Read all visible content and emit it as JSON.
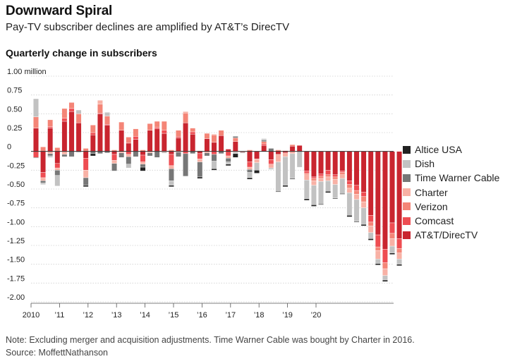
{
  "title": "Downward Spiral",
  "subtitle": "Pay-TV subscriber declines are amplified by AT&T’s DirecTV",
  "chart_heading": "Quarterly change in subscribers",
  "note": "Note: Excluding merger and acquisition adjustments. Time Warner Cable was bought by Charter in 2016.",
  "source": "Source: MoffettNathanson",
  "chart_data": {
    "type": "bar",
    "stacked": true,
    "title": "Quarterly change in subscribers",
    "ylim": [
      -2.0,
      1.0
    ],
    "y_ticks": [
      1.0,
      0.75,
      0.5,
      0.25,
      0,
      -0.25,
      -0.5,
      -0.75,
      -1.0,
      -1.25,
      -1.5,
      -1.75,
      -2.0
    ],
    "y_tick_labels": [
      "1.00 million",
      "0.75",
      "0.50",
      "0.25",
      "0",
      "-0.25",
      "-0.50",
      "-0.75",
      "-1.00",
      "-1.25",
      "-1.50",
      "-1.75",
      "-2.00"
    ],
    "x_tick_labels": [
      "2010",
      "’11",
      "’12",
      "’13",
      "’14",
      "’15",
      "’16",
      "’17",
      "’18",
      "’19",
      "’20"
    ],
    "grid": true,
    "legend_position": "right",
    "series": [
      {
        "name": "AT&T/DirecTV",
        "color": "#c9252f",
        "values": [
          0.31,
          -0.28,
          0.31,
          -0.16,
          0.4,
          0.53,
          0.38,
          -0.09,
          0.22,
          0.5,
          0.35,
          -0.04,
          0.28,
          0.11,
          0.16,
          -0.05,
          0.28,
          0.3,
          0.24,
          -0.04,
          0.18,
          0.38,
          0.23,
          -0.03,
          0.17,
          0.12,
          0.21,
          0.03,
          0.13,
          -0.01,
          -0.14,
          -0.1,
          0.08,
          -0.11,
          -0.04,
          -0.02,
          0.07,
          0.08,
          -0.26,
          -0.34,
          -0.3,
          -0.25,
          -0.31,
          -0.26,
          -0.39,
          -0.45,
          -0.54,
          -0.85,
          -1.11,
          -1.3,
          -0.95,
          -1.16
        ]
      },
      {
        "name": "Comcast",
        "color": "#ee4d52",
        "values": [
          -0.08,
          -0.07,
          0.02,
          -0.06,
          0.04,
          0.04,
          0.0,
          -0.16,
          0.03,
          0.01,
          0.01,
          -0.08,
          0.0,
          -0.04,
          0.04,
          -0.09,
          0.0,
          0.02,
          0.04,
          -0.15,
          0.02,
          -0.03,
          0.03,
          -0.07,
          0.0,
          -0.04,
          0.0,
          -0.06,
          0.0,
          0.0,
          -0.07,
          0.0,
          0.02,
          -0.06,
          0.0,
          0.01,
          0.0,
          0.0,
          -0.03,
          -0.02,
          -0.03,
          -0.06,
          -0.03,
          -0.02,
          -0.05,
          -0.07,
          -0.06,
          -0.09,
          -0.16,
          -0.18,
          -0.14,
          -0.13
        ]
      },
      {
        "name": "Verizon",
        "color": "#f48577",
        "values": [
          0.15,
          0.06,
          0.09,
          0.05,
          0.13,
          0.08,
          0.12,
          0.04,
          0.1,
          0.12,
          0.11,
          0.02,
          0.11,
          0.08,
          0.1,
          0.02,
          0.09,
          0.08,
          0.12,
          0.02,
          0.08,
          0.13,
          0.05,
          0.01,
          0.07,
          0.1,
          0.07,
          0.0,
          0.05,
          0.0,
          0.02,
          0.0,
          0.03,
          0.0,
          0.02,
          0.0,
          0.02,
          0.0,
          -0.02,
          -0.03,
          -0.03,
          -0.03,
          -0.03,
          -0.03,
          -0.05,
          -0.05,
          -0.07,
          -0.05,
          -0.05,
          -0.08,
          -0.07,
          -0.06
        ]
      },
      {
        "name": "Charter",
        "color": "#f8b1a5",
        "values": [
          0.0,
          -0.04,
          -0.03,
          -0.03,
          -0.04,
          0.0,
          0.0,
          -0.1,
          0.0,
          0.05,
          0.0,
          -0.04,
          -0.02,
          -0.03,
          0.0,
          -0.03,
          -0.02,
          0.0,
          -0.01,
          -0.04,
          -0.01,
          0.02,
          0.0,
          -0.04,
          -0.02,
          0.01,
          0.0,
          -0.03,
          -0.01,
          0.0,
          -0.03,
          -0.05,
          0.0,
          -0.05,
          -0.1,
          -0.05,
          -0.03,
          0.0,
          -0.07,
          -0.06,
          -0.04,
          -0.05,
          -0.07,
          -0.05,
          -0.06,
          -0.07,
          -0.08,
          -0.09,
          -0.11,
          -0.09,
          -0.1,
          -0.08
        ]
      },
      {
        "name": "Time Warner Cable",
        "color": "#777777",
        "values": [
          -0.01,
          -0.03,
          -0.03,
          -0.07,
          -0.03,
          -0.07,
          -0.01,
          -0.1,
          -0.03,
          -0.03,
          -0.02,
          -0.1,
          -0.06,
          -0.1,
          -0.07,
          -0.04,
          -0.04,
          -0.08,
          -0.01,
          -0.16,
          -0.06,
          -0.3,
          -0.03,
          -0.2,
          -0.04,
          -0.09,
          -0.03,
          -0.05,
          0.02,
          -0.01,
          -0.04,
          0.0,
          0.02,
          0.04,
          0.0,
          0.0,
          0.0,
          0.0,
          0.0,
          0.0,
          0.0,
          0.0,
          0.0,
          0.0,
          0.0,
          0.0,
          0.0,
          0.0,
          0.0,
          0.0,
          0.0,
          0.0
        ]
      },
      {
        "name": "Dish",
        "color": "#c2c2c2",
        "values": [
          0.24,
          -0.02,
          -0.02,
          -0.14,
          0.0,
          0.0,
          0.05,
          0.0,
          0.0,
          0.0,
          0.05,
          0.0,
          0.0,
          -0.05,
          0.0,
          0.0,
          0.0,
          0.0,
          0.0,
          -0.06,
          0.0,
          0.0,
          0.0,
          0.0,
          0.0,
          -0.1,
          0.0,
          -0.03,
          -0.02,
          0.0,
          -0.07,
          -0.1,
          0.02,
          -0.02,
          -0.39,
          -0.38,
          -0.33,
          -0.21,
          -0.25,
          -0.26,
          -0.3,
          -0.14,
          -0.18,
          -0.2,
          -0.3,
          -0.29,
          -0.22,
          -0.08,
          -0.06,
          -0.06,
          -0.09,
          -0.07
        ]
      },
      {
        "name": "Altice USA",
        "color": "#222222",
        "values": [
          0.0,
          0.0,
          0.0,
          0.0,
          0.0,
          0.0,
          0.0,
          -0.02,
          -0.03,
          0.0,
          0.0,
          0.0,
          0.0,
          0.0,
          0.0,
          -0.05,
          0.0,
          0.0,
          0.0,
          -0.02,
          0.0,
          0.0,
          0.0,
          -0.02,
          0.0,
          -0.02,
          0.0,
          -0.02,
          -0.05,
          0.0,
          -0.02,
          -0.04,
          0.0,
          0.0,
          -0.01,
          -0.02,
          -0.01,
          0.0,
          -0.02,
          -0.02,
          -0.01,
          -0.02,
          -0.01,
          -0.01,
          -0.02,
          -0.01,
          -0.02,
          -0.02,
          -0.02,
          -0.02,
          -0.02,
          -0.02
        ]
      }
    ]
  },
  "legend": [
    {
      "label": "Altice USA",
      "color": "#222222"
    },
    {
      "label": "Dish",
      "color": "#c2c2c2"
    },
    {
      "label": "Time Warner Cable",
      "color": "#777777"
    },
    {
      "label": "Charter",
      "color": "#f8b1a5"
    },
    {
      "label": "Verizon",
      "color": "#f48577"
    },
    {
      "label": "Comcast",
      "color": "#ee4d52"
    },
    {
      "label": "AT&T/DirecTV",
      "color": "#c9252f"
    }
  ]
}
